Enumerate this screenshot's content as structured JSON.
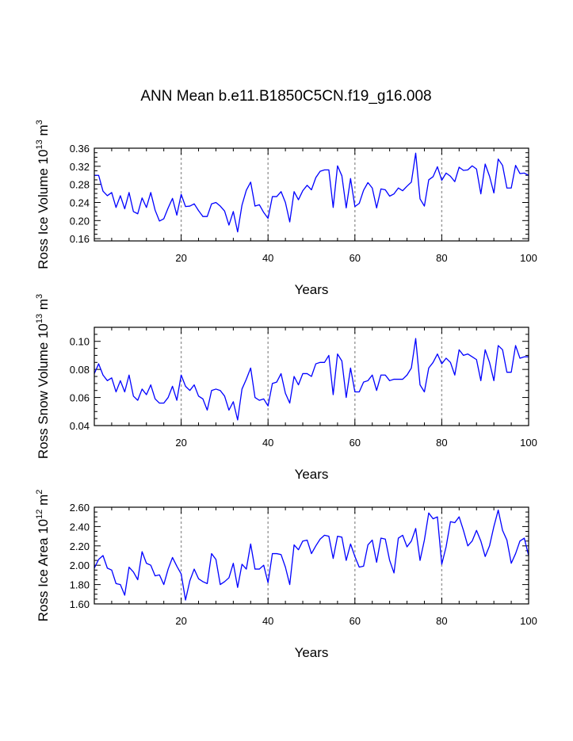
{
  "page": {
    "title": "ANN Mean b.e11.B1850C5CN.f19_g16.008"
  },
  "colors": {
    "line": "#0000ff",
    "grid": "#999999",
    "axis": "#000000"
  },
  "chart_data": [
    {
      "type": "line",
      "title": "ANN Mean b.e11.B1850C5CN.f19_g16.008",
      "xlabel": "Years",
      "ylabel": {
        "main": "Ross Ice Volume 10",
        "exp1": "13",
        "unit": " m",
        "exp2": "3"
      },
      "xlim": [
        0,
        100
      ],
      "ylim": [
        0.155,
        0.36
      ],
      "xticks": [
        20,
        40,
        60,
        80,
        100
      ],
      "xtick_labels": [
        "20",
        "40",
        "60",
        "80",
        "100"
      ],
      "yticks": [
        0.16,
        0.2,
        0.24,
        0.28,
        0.32,
        0.36
      ],
      "ytick_labels": [
        "0.16",
        "0.20",
        "0.24",
        "0.28",
        "0.32",
        "0.36"
      ],
      "grid_x": [
        20,
        40,
        60,
        80
      ],
      "x": [
        0,
        1,
        2,
        3,
        4,
        5,
        6,
        7,
        8,
        9,
        10,
        11,
        12,
        13,
        14,
        15,
        16,
        17,
        18,
        19,
        20,
        21,
        22,
        23,
        24,
        25,
        26,
        27,
        28,
        29,
        30,
        31,
        32,
        33,
        34,
        35,
        36,
        37,
        38,
        39,
        40,
        41,
        42,
        43,
        44,
        45,
        46,
        47,
        48,
        49,
        50,
        51,
        52,
        53,
        54,
        55,
        56,
        57,
        58,
        59,
        60,
        61,
        62,
        63,
        64,
        65,
        66,
        67,
        68,
        69,
        70,
        71,
        72,
        73,
        74,
        75,
        76,
        77,
        78,
        79,
        80,
        81,
        82,
        83,
        84,
        85,
        86,
        87,
        88,
        89,
        90,
        91,
        92,
        93,
        94,
        95,
        96,
        97,
        98,
        99,
        100
      ],
      "values": [
        0.3,
        0.3,
        0.265,
        0.255,
        0.262,
        0.229,
        0.255,
        0.226,
        0.262,
        0.22,
        0.215,
        0.25,
        0.229,
        0.262,
        0.223,
        0.199,
        0.204,
        0.228,
        0.249,
        0.212,
        0.258,
        0.231,
        0.232,
        0.237,
        0.222,
        0.209,
        0.209,
        0.237,
        0.24,
        0.232,
        0.221,
        0.19,
        0.22,
        0.175,
        0.234,
        0.267,
        0.285,
        0.232,
        0.235,
        0.218,
        0.205,
        0.253,
        0.253,
        0.264,
        0.24,
        0.197,
        0.264,
        0.246,
        0.266,
        0.278,
        0.268,
        0.295,
        0.309,
        0.312,
        0.312,
        0.229,
        0.321,
        0.299,
        0.228,
        0.293,
        0.231,
        0.238,
        0.267,
        0.284,
        0.272,
        0.228,
        0.27,
        0.268,
        0.254,
        0.259,
        0.272,
        0.266,
        0.276,
        0.285,
        0.349,
        0.248,
        0.232,
        0.29,
        0.297,
        0.319,
        0.289,
        0.305,
        0.298,
        0.286,
        0.318,
        0.311,
        0.312,
        0.321,
        0.314,
        0.259,
        0.325,
        0.298,
        0.261,
        0.336,
        0.322,
        0.272,
        0.272,
        0.322,
        0.304,
        0.305,
        0.3
      ]
    },
    {
      "type": "line",
      "xlabel": "Years",
      "ylabel": {
        "main": "Ross Snow Volume 10",
        "exp1": "13",
        "unit": " m",
        "exp2": "3"
      },
      "xlim": [
        0,
        100
      ],
      "ylim": [
        0.04,
        0.11
      ],
      "xticks": [
        20,
        40,
        60,
        80,
        100
      ],
      "xtick_labels": [
        "20",
        "40",
        "60",
        "80",
        "100"
      ],
      "yticks": [
        0.04,
        0.06,
        0.08,
        0.1
      ],
      "ytick_labels": [
        "0.04",
        "0.06",
        "0.08",
        "0.10"
      ],
      "grid_x": [
        20,
        40,
        60,
        80
      ],
      "x": [
        0,
        1,
        2,
        3,
        4,
        5,
        6,
        7,
        8,
        9,
        10,
        11,
        12,
        13,
        14,
        15,
        16,
        17,
        18,
        19,
        20,
        21,
        22,
        23,
        24,
        25,
        26,
        27,
        28,
        29,
        30,
        31,
        32,
        33,
        34,
        35,
        36,
        37,
        38,
        39,
        40,
        41,
        42,
        43,
        44,
        45,
        46,
        47,
        48,
        49,
        50,
        51,
        52,
        53,
        54,
        55,
        56,
        57,
        58,
        59,
        60,
        61,
        62,
        63,
        64,
        65,
        66,
        67,
        68,
        69,
        70,
        71,
        72,
        73,
        74,
        75,
        76,
        77,
        78,
        79,
        80,
        81,
        82,
        83,
        84,
        85,
        86,
        87,
        88,
        89,
        90,
        91,
        92,
        93,
        94,
        95,
        96,
        97,
        98,
        99,
        100
      ],
      "values": [
        0.077,
        0.084,
        0.076,
        0.072,
        0.074,
        0.064,
        0.072,
        0.064,
        0.076,
        0.061,
        0.058,
        0.066,
        0.062,
        0.069,
        0.059,
        0.056,
        0.056,
        0.06,
        0.068,
        0.058,
        0.076,
        0.068,
        0.065,
        0.069,
        0.061,
        0.059,
        0.051,
        0.065,
        0.066,
        0.065,
        0.061,
        0.051,
        0.057,
        0.044,
        0.066,
        0.073,
        0.081,
        0.06,
        0.058,
        0.059,
        0.054,
        0.07,
        0.071,
        0.077,
        0.063,
        0.056,
        0.075,
        0.069,
        0.077,
        0.077,
        0.075,
        0.084,
        0.085,
        0.085,
        0.09,
        0.062,
        0.091,
        0.086,
        0.06,
        0.081,
        0.064,
        0.064,
        0.071,
        0.072,
        0.076,
        0.065,
        0.076,
        0.076,
        0.072,
        0.073,
        0.073,
        0.073,
        0.076,
        0.081,
        0.102,
        0.069,
        0.064,
        0.081,
        0.085,
        0.091,
        0.084,
        0.088,
        0.085,
        0.076,
        0.094,
        0.09,
        0.091,
        0.089,
        0.087,
        0.072,
        0.094,
        0.085,
        0.072,
        0.097,
        0.094,
        0.078,
        0.078,
        0.097,
        0.088,
        0.089,
        0.089
      ]
    },
    {
      "type": "line",
      "xlabel": "Years",
      "ylabel": {
        "main": "Ross Ice Area 10",
        "exp1": "12",
        "unit": " m",
        "exp2": "2"
      },
      "xlim": [
        0,
        100
      ],
      "ylim": [
        1.6,
        2.6
      ],
      "xticks": [
        20,
        40,
        60,
        80,
        100
      ],
      "xtick_labels": [
        "20",
        "40",
        "60",
        "80",
        "100"
      ],
      "yticks": [
        1.6,
        1.8,
        2.0,
        2.2,
        2.4,
        2.6
      ],
      "ytick_labels": [
        "1.60",
        "1.80",
        "2.00",
        "2.20",
        "2.40",
        "2.60"
      ],
      "grid_x": [
        20,
        40,
        60,
        80
      ],
      "x": [
        0,
        1,
        2,
        3,
        4,
        5,
        6,
        7,
        8,
        9,
        10,
        11,
        12,
        13,
        14,
        15,
        16,
        17,
        18,
        19,
        20,
        21,
        22,
        23,
        24,
        25,
        26,
        27,
        28,
        29,
        30,
        31,
        32,
        33,
        34,
        35,
        36,
        37,
        38,
        39,
        40,
        41,
        42,
        43,
        44,
        45,
        46,
        47,
        48,
        49,
        50,
        51,
        52,
        53,
        54,
        55,
        56,
        57,
        58,
        59,
        60,
        61,
        62,
        63,
        64,
        65,
        66,
        67,
        68,
        69,
        70,
        71,
        72,
        73,
        74,
        75,
        76,
        77,
        78,
        79,
        80,
        81,
        82,
        83,
        84,
        85,
        86,
        87,
        88,
        89,
        90,
        91,
        92,
        93,
        94,
        95,
        96,
        97,
        98,
        99,
        100
      ],
      "values": [
        1.97,
        2.06,
        2.1,
        1.97,
        1.95,
        1.81,
        1.8,
        1.69,
        1.98,
        1.93,
        1.85,
        2.14,
        2.02,
        2.0,
        1.89,
        1.9,
        1.8,
        1.96,
        2.08,
        1.99,
        1.91,
        1.64,
        1.84,
        1.96,
        1.86,
        1.83,
        1.81,
        2.12,
        2.06,
        1.8,
        1.83,
        1.87,
        2.02,
        1.77,
        2.01,
        1.96,
        2.22,
        1.96,
        1.96,
        2.0,
        1.82,
        2.12,
        2.12,
        2.11,
        1.98,
        1.8,
        2.21,
        2.16,
        2.25,
        2.26,
        2.12,
        2.2,
        2.27,
        2.31,
        2.3,
        2.07,
        2.3,
        2.29,
        2.05,
        2.22,
        2.09,
        1.98,
        1.99,
        2.21,
        2.26,
        2.03,
        2.28,
        2.27,
        2.05,
        1.92,
        2.28,
        2.31,
        2.19,
        2.25,
        2.38,
        2.05,
        2.26,
        2.54,
        2.48,
        2.5,
        2.01,
        2.19,
        2.45,
        2.44,
        2.5,
        2.36,
        2.2,
        2.25,
        2.36,
        2.25,
        2.09,
        2.2,
        2.4,
        2.57,
        2.36,
        2.26,
        2.02,
        2.12,
        2.25,
        2.28,
        2.1
      ]
    }
  ]
}
